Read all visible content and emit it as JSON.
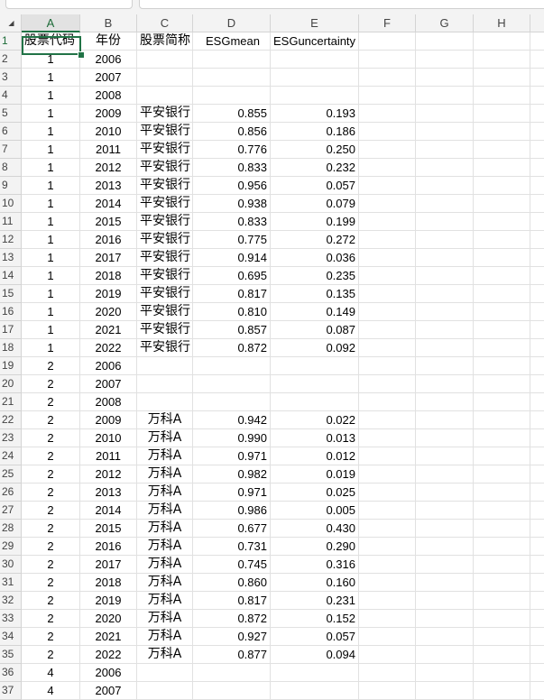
{
  "columns": [
    "A",
    "B",
    "C",
    "D",
    "E",
    "F",
    "G",
    "H",
    ""
  ],
  "selected_cell": "A1",
  "header_row": [
    "股票代码",
    "年份",
    "股票简称",
    "ESGmean",
    "ESGuncertainty"
  ],
  "rows": [
    [
      "1",
      "2006",
      "",
      "",
      ""
    ],
    [
      "1",
      "2007",
      "",
      "",
      ""
    ],
    [
      "1",
      "2008",
      "",
      "",
      ""
    ],
    [
      "1",
      "2009",
      "平安银行",
      "0.855",
      "0.193"
    ],
    [
      "1",
      "2010",
      "平安银行",
      "0.856",
      "0.186"
    ],
    [
      "1",
      "2011",
      "平安银行",
      "0.776",
      "0.250"
    ],
    [
      "1",
      "2012",
      "平安银行",
      "0.833",
      "0.232"
    ],
    [
      "1",
      "2013",
      "平安银行",
      "0.956",
      "0.057"
    ],
    [
      "1",
      "2014",
      "平安银行",
      "0.938",
      "0.079"
    ],
    [
      "1",
      "2015",
      "平安银行",
      "0.833",
      "0.199"
    ],
    [
      "1",
      "2016",
      "平安银行",
      "0.775",
      "0.272"
    ],
    [
      "1",
      "2017",
      "平安银行",
      "0.914",
      "0.036"
    ],
    [
      "1",
      "2018",
      "平安银行",
      "0.695",
      "0.235"
    ],
    [
      "1",
      "2019",
      "平安银行",
      "0.817",
      "0.135"
    ],
    [
      "1",
      "2020",
      "平安银行",
      "0.810",
      "0.149"
    ],
    [
      "1",
      "2021",
      "平安银行",
      "0.857",
      "0.087"
    ],
    [
      "1",
      "2022",
      "平安银行",
      "0.872",
      "0.092"
    ],
    [
      "2",
      "2006",
      "",
      "",
      ""
    ],
    [
      "2",
      "2007",
      "",
      "",
      ""
    ],
    [
      "2",
      "2008",
      "",
      "",
      ""
    ],
    [
      "2",
      "2009",
      "万科A",
      "0.942",
      "0.022"
    ],
    [
      "2",
      "2010",
      "万科A",
      "0.990",
      "0.013"
    ],
    [
      "2",
      "2011",
      "万科A",
      "0.971",
      "0.012"
    ],
    [
      "2",
      "2012",
      "万科A",
      "0.982",
      "0.019"
    ],
    [
      "2",
      "2013",
      "万科A",
      "0.971",
      "0.025"
    ],
    [
      "2",
      "2014",
      "万科A",
      "0.986",
      "0.005"
    ],
    [
      "2",
      "2015",
      "万科A",
      "0.677",
      "0.430"
    ],
    [
      "2",
      "2016",
      "万科A",
      "0.731",
      "0.290"
    ],
    [
      "2",
      "2017",
      "万科A",
      "0.745",
      "0.316"
    ],
    [
      "2",
      "2018",
      "万科A",
      "0.860",
      "0.160"
    ],
    [
      "2",
      "2019",
      "万科A",
      "0.817",
      "0.231"
    ],
    [
      "2",
      "2020",
      "万科A",
      "0.872",
      "0.152"
    ],
    [
      "2",
      "2021",
      "万科A",
      "0.927",
      "0.057"
    ],
    [
      "2",
      "2022",
      "万科A",
      "0.877",
      "0.094"
    ],
    [
      "4",
      "2006",
      "",
      "",
      ""
    ],
    [
      "4",
      "2007",
      "",
      "",
      ""
    ]
  ]
}
